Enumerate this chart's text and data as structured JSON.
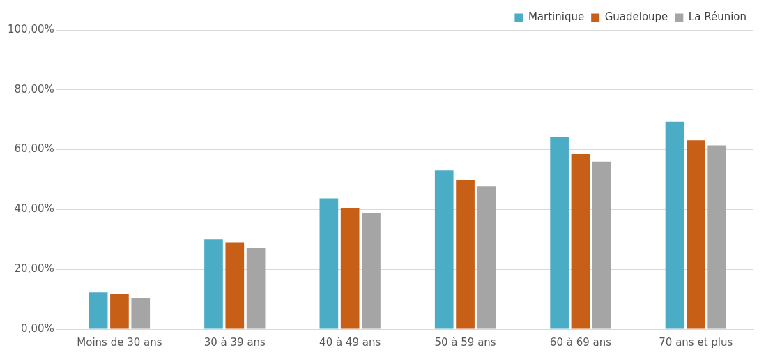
{
  "chart_data": {
    "type": "bar",
    "categories": [
      "Moins de 30 ans",
      "30 à 39 ans",
      "40 à 49 ans",
      "50 à 59 ans",
      "60 à 69 ans",
      "70 ans et plus"
    ],
    "series": [
      {
        "name": "Martinique",
        "color": "#4bacc6",
        "values": [
          12.3,
          30.0,
          43.7,
          53.1,
          64.1,
          69.3
        ]
      },
      {
        "name": "Guadeloupe",
        "color": "#c85f17",
        "values": [
          11.8,
          29.0,
          40.3,
          49.9,
          58.5,
          63.1
        ]
      },
      {
        "name": "La Réunion",
        "color": "#a5a5a5",
        "values": [
          10.3,
          27.3,
          38.8,
          47.7,
          56.0,
          61.4
        ]
      }
    ],
    "ylim": [
      0,
      100
    ],
    "yticks": [
      {
        "value": 0,
        "label": "0,00%"
      },
      {
        "value": 20,
        "label": "20,00%"
      },
      {
        "value": 40,
        "label": "40,00%"
      },
      {
        "value": 60,
        "label": "60,00%"
      },
      {
        "value": 80,
        "label": "80,00%"
      },
      {
        "value": 100,
        "label": "100,00%"
      }
    ],
    "grid": "y",
    "legend": "top right"
  }
}
